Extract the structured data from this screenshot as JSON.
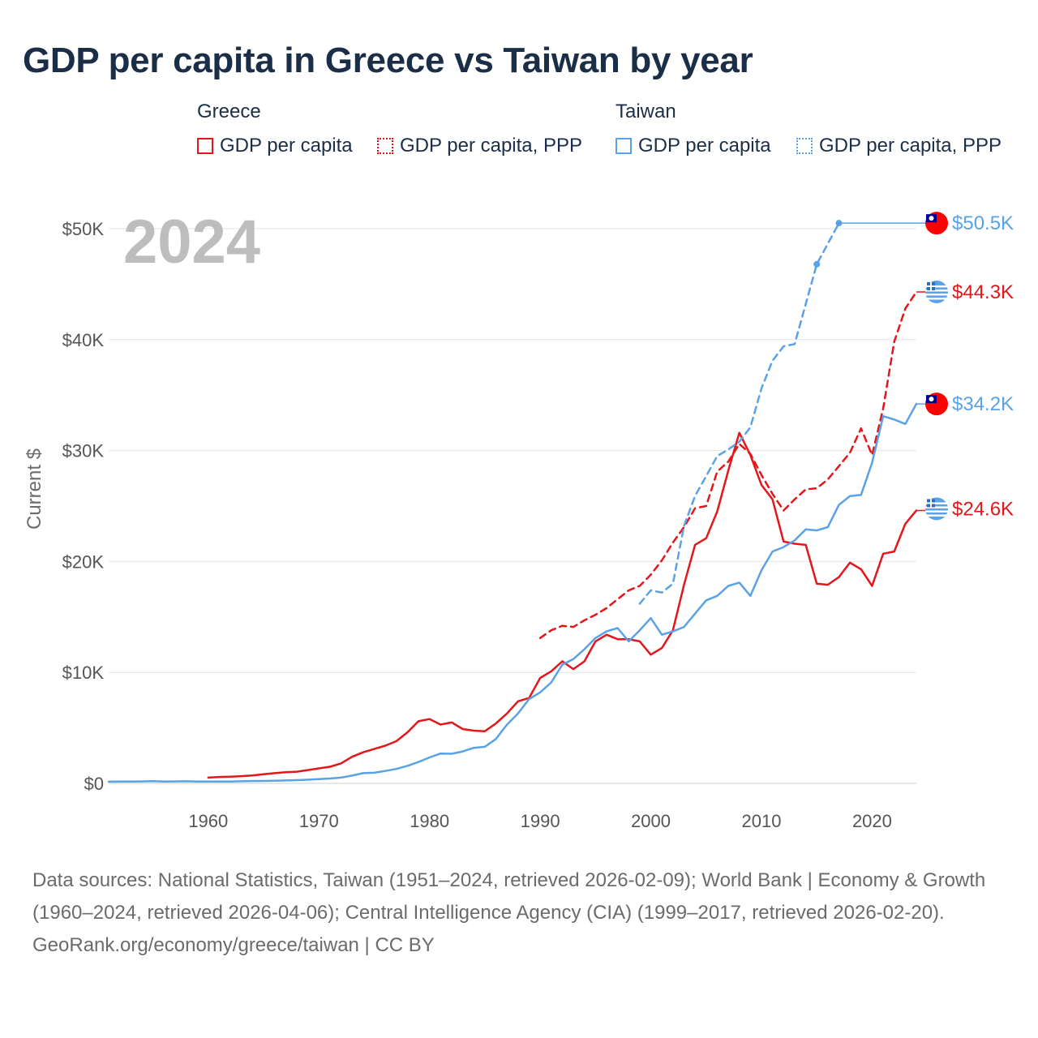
{
  "title": "GDP per capita in Greece vs Taiwan by year",
  "legend": {
    "groups": [
      {
        "name": "Greece",
        "items": [
          "GDP per capita",
          "GDP per capita, PPP"
        ]
      },
      {
        "name": "Taiwan",
        "items": [
          "GDP per capita",
          "GDP per capita, PPP"
        ]
      }
    ]
  },
  "colors": {
    "greece": "#e3171b",
    "taiwan": "#5aa2e6",
    "text": "#1b2e48",
    "grid": "#e6e6e6"
  },
  "footer": {
    "sources": "Data sources: National Statistics, Taiwan (1951–2024, retrieved 2026-02-09); World Bank | Economy & Growth (1960–2024, retrieved 2026-04-06); Central Intelligence Agency (CIA) (1999–2017, retrieved 2026-02-20).",
    "credit": "GeoRank.org/economy/greece/taiwan | CC BY"
  },
  "chart_data": {
    "type": "line",
    "title": "GDP per capita in Greece vs Taiwan by year",
    "year_label": "2024",
    "xlabel": "",
    "ylabel": "Current $",
    "xlim": [
      1951,
      2024
    ],
    "ylim": [
      0,
      50500
    ],
    "x_ticks": [
      1960,
      1970,
      1980,
      1990,
      2000,
      2010,
      2020
    ],
    "x_tick_labels": [
      "1960",
      "1970",
      "1980",
      "1990",
      "2000",
      "2010",
      "2020"
    ],
    "y_ticks": [
      0,
      10000,
      20000,
      30000,
      40000,
      50000
    ],
    "y_tick_labels": [
      "$0",
      "$10K",
      "$20K",
      "$30K",
      "$40K",
      "$50K"
    ],
    "grid": true,
    "end_labels": [
      {
        "series": "Taiwan GDP per capita, PPP",
        "text": "$50.5K",
        "value": 50500,
        "country": "taiwan"
      },
      {
        "series": "Greece GDP per capita, PPP",
        "text": "$44.3K",
        "value": 44300,
        "country": "greece"
      },
      {
        "series": "Taiwan GDP per capita",
        "text": "$34.2K",
        "value": 34200,
        "country": "taiwan"
      },
      {
        "series": "Greece GDP per capita",
        "text": "$24.6K",
        "value": 24600,
        "country": "greece"
      }
    ],
    "series": [
      {
        "name": "Greece GDP per capita",
        "country": "greece",
        "style": "solid",
        "x": [
          1960,
          1961,
          1962,
          1963,
          1964,
          1965,
          1966,
          1967,
          1968,
          1969,
          1970,
          1971,
          1972,
          1973,
          1974,
          1975,
          1976,
          1977,
          1978,
          1979,
          1980,
          1981,
          1982,
          1983,
          1984,
          1985,
          1986,
          1987,
          1988,
          1989,
          1990,
          1991,
          1992,
          1993,
          1994,
          1995,
          1996,
          1997,
          1998,
          1999,
          2000,
          2001,
          2002,
          2003,
          2004,
          2005,
          2006,
          2007,
          2008,
          2009,
          2010,
          2011,
          2012,
          2013,
          2014,
          2015,
          2016,
          2017,
          2018,
          2019,
          2020,
          2021,
          2022,
          2023,
          2024
        ],
        "y": [
          520,
          580,
          600,
          650,
          720,
          820,
          920,
          1000,
          1050,
          1200,
          1350,
          1500,
          1800,
          2400,
          2800,
          3100,
          3400,
          3800,
          4600,
          5600,
          5800,
          5300,
          5500,
          4900,
          4750,
          4700,
          5400,
          6300,
          7400,
          7700,
          9500,
          10100,
          11000,
          10300,
          11000,
          12800,
          13400,
          13000,
          13000,
          12800,
          11600,
          12200,
          13800,
          17900,
          21500,
          22100,
          24500,
          28200,
          31600,
          29600,
          26900,
          25600,
          21800,
          21600,
          21500,
          18000,
          17900,
          18600,
          19900,
          19300,
          17800,
          20700,
          20900,
          23400,
          24600
        ]
      },
      {
        "name": "Greece GDP per capita, PPP",
        "country": "greece",
        "style": "dashed",
        "x": [
          1990,
          1991,
          1992,
          1993,
          1994,
          1995,
          1996,
          1997,
          1998,
          1999,
          2000,
          2001,
          2002,
          2003,
          2004,
          2005,
          2006,
          2007,
          2008,
          2009,
          2010,
          2011,
          2012,
          2013,
          2014,
          2015,
          2016,
          2017,
          2018,
          2019,
          2020,
          2021,
          2022,
          2023,
          2024
        ],
        "y": [
          13100,
          13800,
          14200,
          14100,
          14700,
          15200,
          15800,
          16600,
          17400,
          17800,
          18800,
          20100,
          21700,
          23100,
          24800,
          25000,
          28100,
          29000,
          30600,
          29700,
          27800,
          26100,
          24600,
          25600,
          26500,
          26600,
          27400,
          28600,
          29800,
          32000,
          29600,
          33800,
          39800,
          42800,
          44300
        ]
      },
      {
        "name": "Taiwan GDP per capita",
        "country": "taiwan",
        "style": "solid",
        "x": [
          1951,
          1952,
          1953,
          1954,
          1955,
          1956,
          1957,
          1958,
          1959,
          1960,
          1961,
          1962,
          1963,
          1964,
          1965,
          1966,
          1967,
          1968,
          1969,
          1970,
          1971,
          1972,
          1973,
          1974,
          1975,
          1976,
          1977,
          1978,
          1979,
          1980,
          1981,
          1982,
          1983,
          1984,
          1985,
          1986,
          1987,
          1988,
          1989,
          1990,
          1991,
          1992,
          1993,
          1994,
          1995,
          1996,
          1997,
          1998,
          1999,
          2000,
          2001,
          2002,
          2003,
          2004,
          2005,
          2006,
          2007,
          2008,
          2009,
          2010,
          2011,
          2012,
          2013,
          2014,
          2015,
          2016,
          2017,
          2018,
          2019,
          2020,
          2021,
          2022,
          2023,
          2024
        ],
        "y": [
          150,
          170,
          160,
          175,
          200,
          160,
          175,
          190,
          160,
          160,
          160,
          170,
          190,
          210,
          220,
          240,
          260,
          290,
          330,
          380,
          440,
          520,
          700,
          920,
          960,
          1120,
          1300,
          1580,
          1920,
          2340,
          2690,
          2670,
          2880,
          3200,
          3300,
          4000,
          5300,
          6300,
          7600,
          8200,
          9100,
          10700,
          11200,
          12100,
          13100,
          13700,
          14000,
          12800,
          13800,
          14900,
          13400,
          13700,
          14100,
          15300,
          16500,
          16900,
          17800,
          18100,
          16900,
          19200,
          20900,
          21300,
          21900,
          22900,
          22800,
          23100,
          25100,
          25900,
          26000,
          28900,
          33100,
          32800,
          32400,
          34200
        ]
      },
      {
        "name": "Taiwan GDP per capita, PPP",
        "country": "taiwan",
        "style": "dashed",
        "x": [
          1999,
          2000,
          2001,
          2002,
          2003,
          2004,
          2005,
          2006,
          2007,
          2008,
          2009,
          2010,
          2011,
          2012,
          2013,
          2015,
          2017
        ],
        "y": [
          16200,
          17400,
          17200,
          18000,
          23200,
          25900,
          27700,
          29500,
          30100,
          30800,
          32100,
          35600,
          38100,
          39400,
          39600,
          46800,
          50500
        ],
        "dots": [
          2015,
          2017
        ],
        "extension_to": 2024
      }
    ]
  }
}
